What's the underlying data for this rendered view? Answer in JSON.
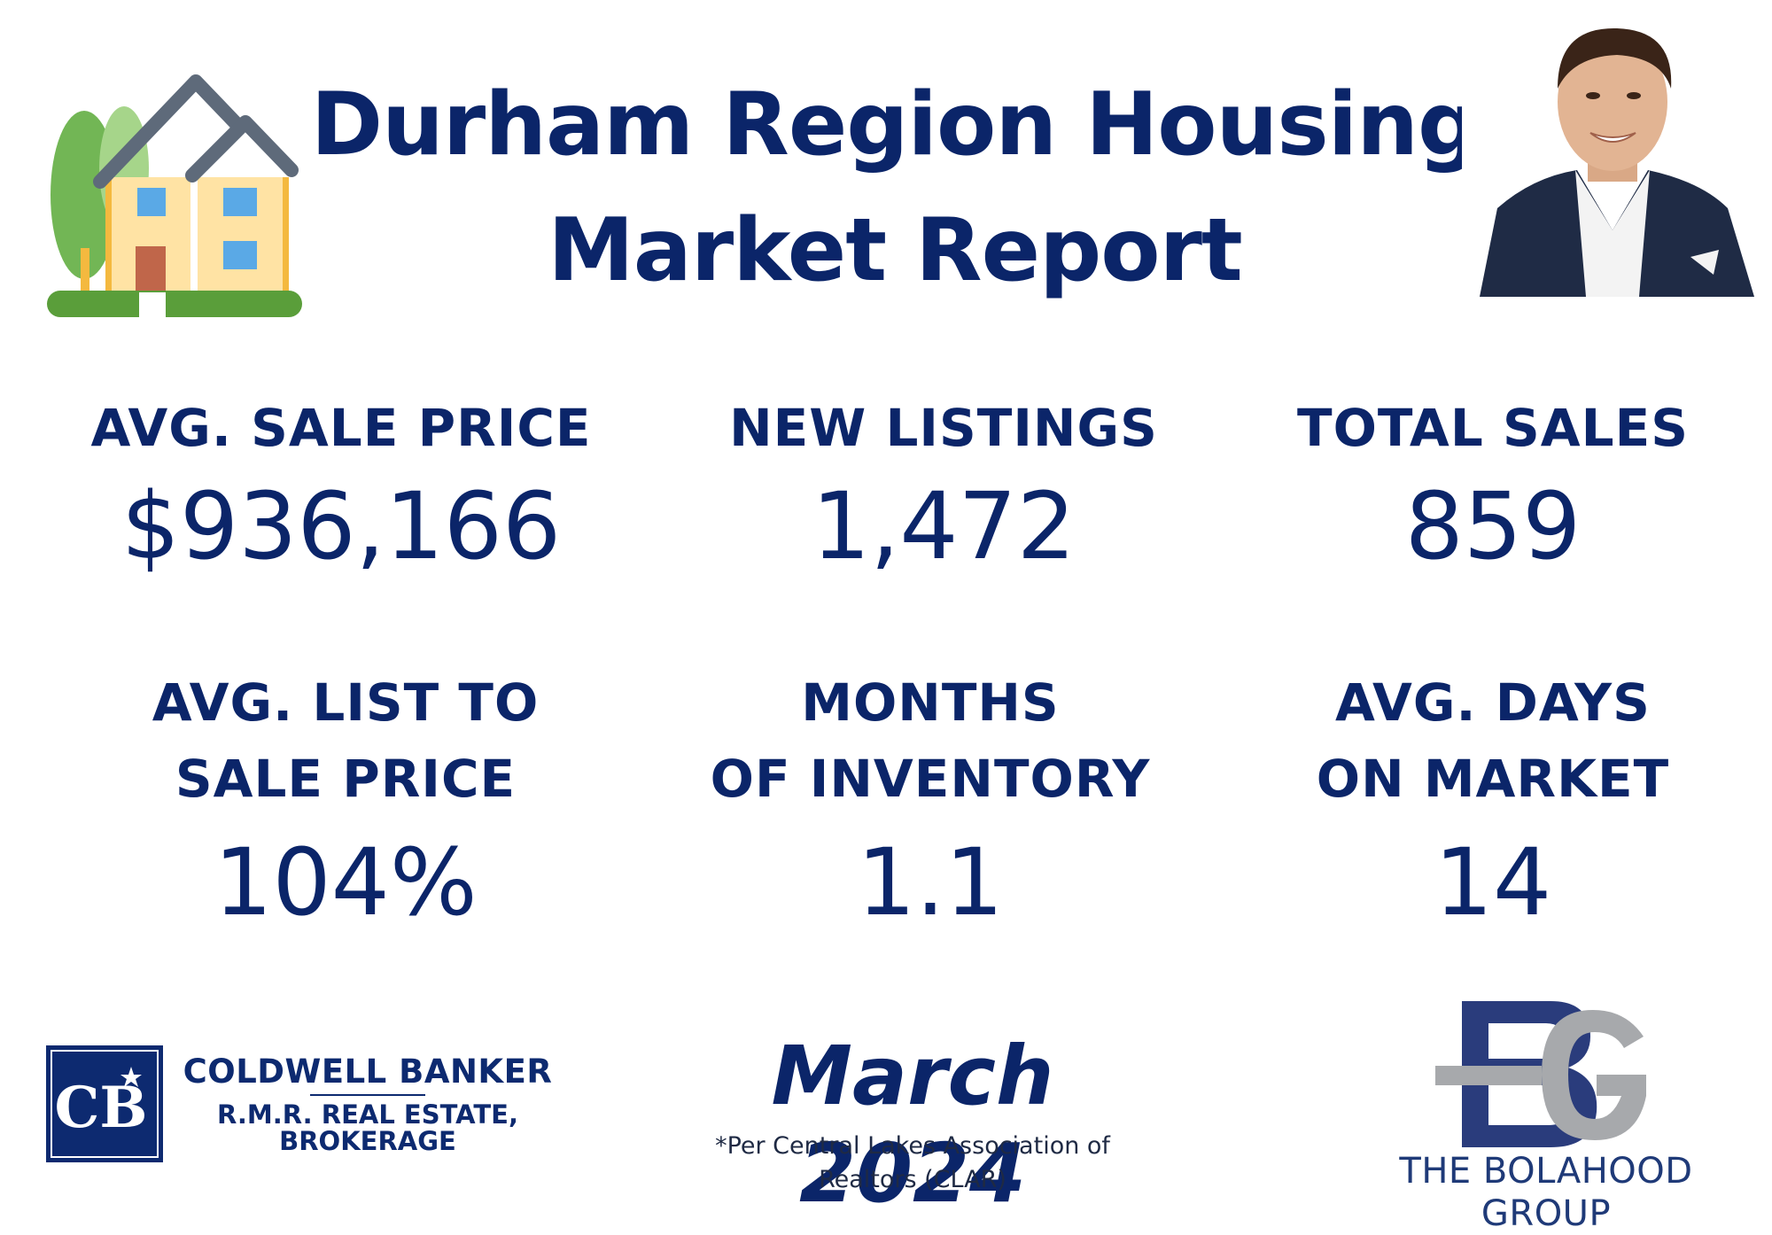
{
  "header": {
    "title_line1": "Durham Region Housing",
    "title_line2": "Market Report"
  },
  "stats": [
    {
      "label_line1": "AVG. SALE PRICE",
      "label_line2": "",
      "value": "$936,166"
    },
    {
      "label_line1": "NEW LISTINGS",
      "label_line2": "",
      "value": "1,472"
    },
    {
      "label_line1": "TOTAL SALES",
      "label_line2": "",
      "value": "859"
    },
    {
      "label_line1": "AVG. LIST TO",
      "label_line2": "SALE PRICE",
      "value": "104%"
    },
    {
      "label_line1": "MONTHS",
      "label_line2": "OF INVENTORY",
      "value": "1.1"
    },
    {
      "label_line1": "AVG. DAYS",
      "label_line2": "ON MARKET",
      "value": "14"
    }
  ],
  "brokerage": {
    "logo_letters": "CB",
    "name": "COLDWELL BANKER",
    "sub_line1": "R.M.R. REAL ESTATE,",
    "sub_line2": "BROKERAGE"
  },
  "report": {
    "month": "March 2024",
    "source_line1": "*Per Central Lakes Association of",
    "source_line2": "Realtors (CLAR)"
  },
  "group": {
    "logo_letters": "BG",
    "name": "THE BOLAHOOD GROUP"
  },
  "icons": {
    "house": "house-illustration-icon",
    "agent_photo": "agent-portrait"
  },
  "colors": {
    "navy": "#0b2569",
    "brand_navy": "#0d2a70",
    "grey": "#a7a9ac"
  }
}
